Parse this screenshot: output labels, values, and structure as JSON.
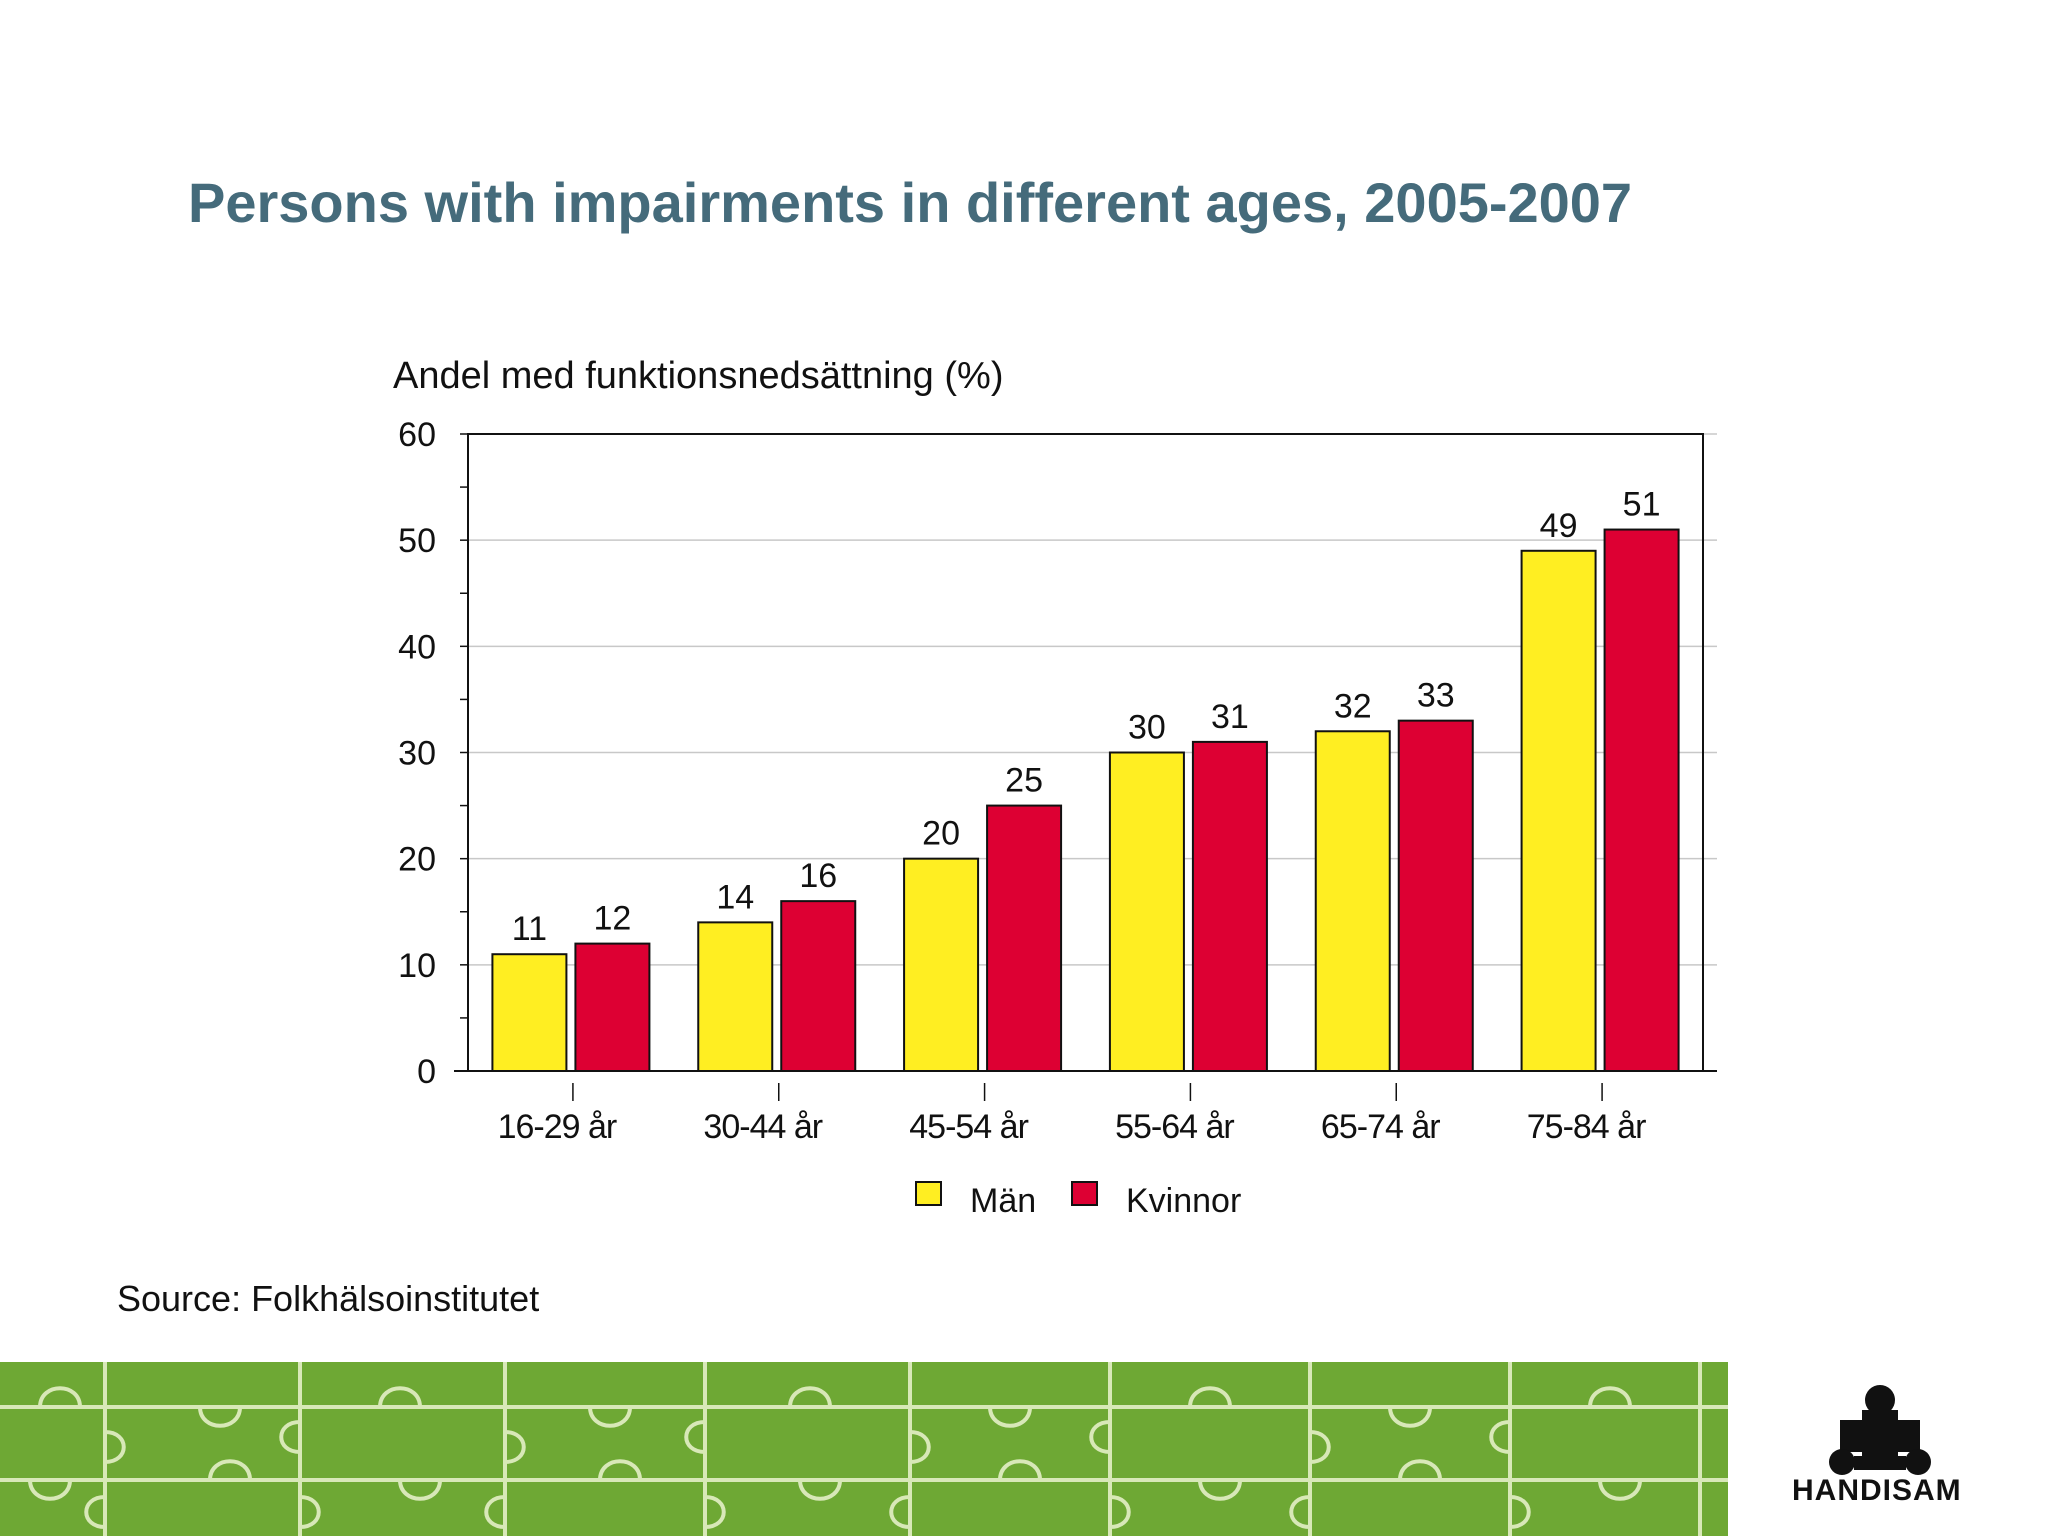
{
  "slide": {
    "title": "Persons with impairments in different ages, 2005-2007",
    "source": "Source: Folkhälsoinstitutet",
    "logo_text": "HANDISAM"
  },
  "colors": {
    "title": "#456b7b",
    "men": "#ffee22",
    "women": "#dd0033",
    "footer_green": "#6ea834"
  },
  "chart_data": {
    "type": "bar",
    "title": "",
    "ylabel": "Andel med funktionsnedsättning (%)",
    "xlabel": "",
    "categories": [
      "16-29 år",
      "30-44 år",
      "45-54 år",
      "55-64 år",
      "65-74 år",
      "75-84 år"
    ],
    "series": [
      {
        "name": "Män",
        "values": [
          11,
          14,
          20,
          30,
          32,
          49
        ],
        "labels": [
          "11",
          "14",
          "20",
          "30",
          "32",
          "49"
        ],
        "color": "#ffee22"
      },
      {
        "name": "Kvinnor",
        "values": [
          12,
          16,
          25,
          31,
          33,
          51
        ],
        "labels": [
          "12",
          "16",
          "25",
          "31",
          "33",
          "51"
        ],
        "color": "#dd0033"
      }
    ],
    "ylim": [
      0,
      60
    ],
    "yticks": [
      0,
      10,
      20,
      30,
      40,
      50,
      60
    ],
    "grid": true,
    "legend": "bottom"
  }
}
